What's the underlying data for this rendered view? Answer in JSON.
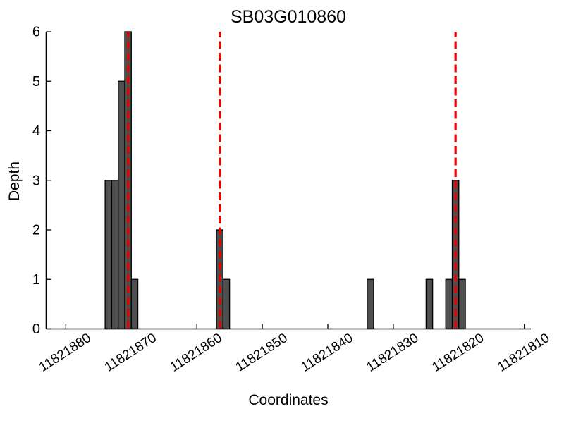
{
  "chart_data": {
    "type": "bar",
    "title": "SB03G010860",
    "xlabel": "Coordinates",
    "ylabel": "Depth",
    "x_ticks": [
      11821880,
      11821870,
      11821860,
      11821850,
      11821840,
      11821830,
      11821820,
      11821810
    ],
    "y_ticks": [
      0,
      1,
      2,
      3,
      4,
      5,
      6
    ],
    "xlim": [
      11821883,
      11821809
    ],
    "ylim": [
      0,
      6
    ],
    "x_axis_reversed": true,
    "bin_width": 1,
    "grid": false,
    "legend": "none",
    "bars": [
      {
        "center": 11821873.5,
        "depth": 3
      },
      {
        "center": 11821872.5,
        "depth": 3
      },
      {
        "center": 11821871.5,
        "depth": 5
      },
      {
        "center": 11821870.5,
        "depth": 6
      },
      {
        "center": 11821869.5,
        "depth": 1
      },
      {
        "center": 11821856.5,
        "depth": 2
      },
      {
        "center": 11821855.5,
        "depth": 1
      },
      {
        "center": 11821833.5,
        "depth": 1
      },
      {
        "center": 11821824.5,
        "depth": 1
      },
      {
        "center": 11821821.5,
        "depth": 1
      },
      {
        "center": 11821820.5,
        "depth": 3
      },
      {
        "center": 11821819.5,
        "depth": 1
      }
    ],
    "vlines": {
      "positions": [
        11821870.5,
        11821856.5,
        11821820.5
      ],
      "style": "dashed",
      "color": "#ee0000"
    },
    "colors": {
      "bar_fill": "#4f4f4f",
      "bar_edge": "#000000",
      "axis": "#000000",
      "background": "#ffffff"
    }
  }
}
